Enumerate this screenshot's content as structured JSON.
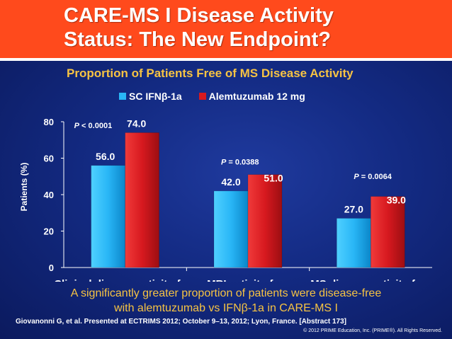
{
  "slide": {
    "title_line1": "CARE-MS I Disease Activity",
    "title_line2": "Status: The New Endpoint?",
    "colors": {
      "header": "#ff4a1c",
      "background": "#132a82",
      "accent_text": "#f6c343"
    }
  },
  "chart_data": {
    "type": "bar",
    "title": "Proportion of Patients Free of MS Disease Activity",
    "ylabel": "Patients (%)",
    "xlabel": "",
    "ylim": [
      0,
      80
    ],
    "yticks": [
      0,
      20,
      40,
      60,
      80
    ],
    "categories": [
      "Clinical disease activity-free",
      "MRI activity-free",
      "MS disease activity-free"
    ],
    "series": [
      {
        "name": "SC IFNβ-1a",
        "color": "#29b6f6",
        "values": [
          56.0,
          42.0,
          27.0
        ],
        "labels": [
          "56.0",
          "42.0",
          "27.0"
        ]
      },
      {
        "name": "Alemtuzumab 12 mg",
        "color": "#d7191f",
        "values": [
          74.0,
          51.0,
          39.0
        ],
        "labels": [
          "74.0",
          "51.0",
          "39.0"
        ]
      }
    ],
    "p_values": [
      {
        "prefix": "P",
        "text": " < 0.0001"
      },
      {
        "prefix": "P",
        "text": " = 0.0388"
      },
      {
        "prefix": "P",
        "text": " = 0.0064"
      }
    ],
    "legend_position": "top",
    "grid": false
  },
  "footnote": {
    "line1": "A significantly greater proportion of patients were disease-free",
    "line2": "with alemtuzumab vs IFNβ-1a in CARE-MS I"
  },
  "citation": "Giovanonni G, et al. Presented at ECTRIMS 2012; October 9–13, 2012; Lyon, France. [Abstract 173]",
  "copyright": "© 2012 PRIME Education, Inc. (PRIME®). All Rights Reserved."
}
